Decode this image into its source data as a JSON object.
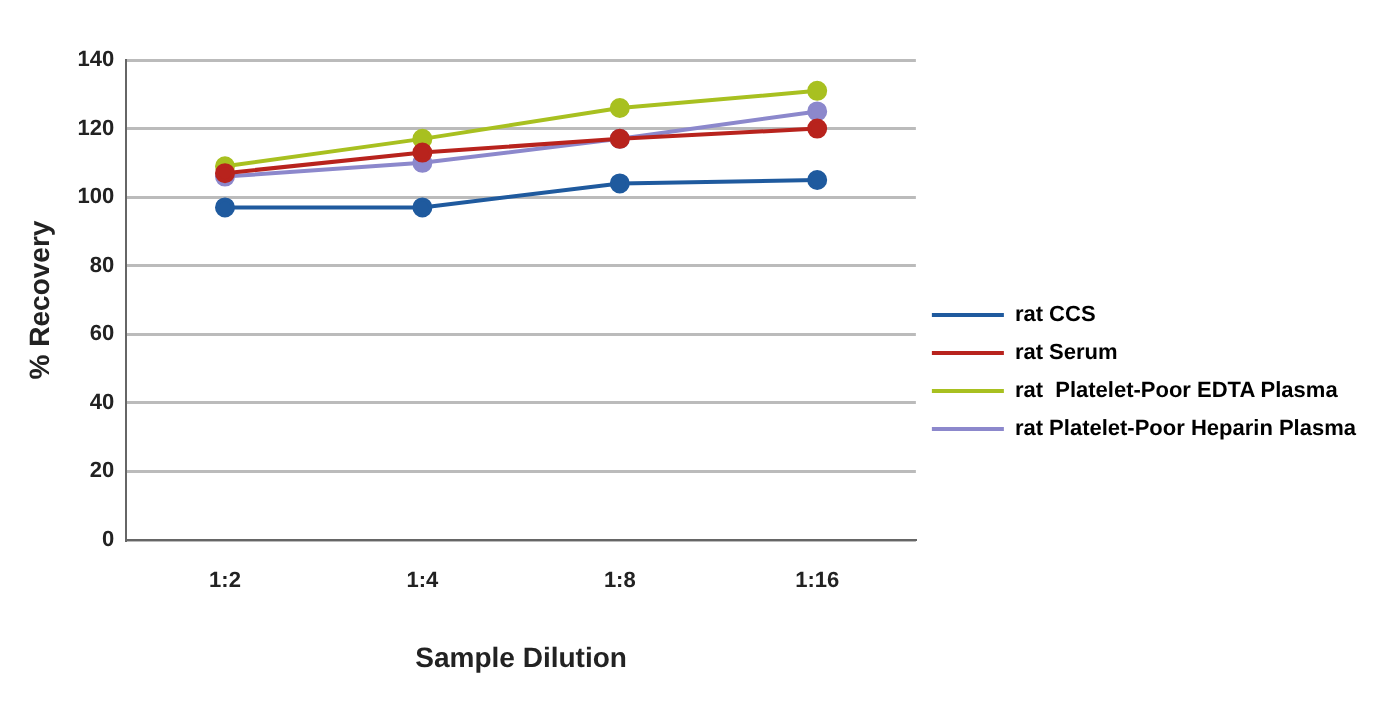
{
  "chart_data": {
    "type": "line",
    "xlabel": "Sample Dilution",
    "ylabel": "% Recovery",
    "categories": [
      "1:2",
      "1:4",
      "1:8",
      "1:16"
    ],
    "series": [
      {
        "name": "rat CCS",
        "color": "#1f5a9e",
        "values": [
          97,
          97,
          104,
          105
        ]
      },
      {
        "name": "rat Serum",
        "color": "#b8231d",
        "values": [
          107,
          113,
          117,
          120
        ]
      },
      {
        "name": "rat  Platelet-Poor EDTA Plasma",
        "color": "#a8c020",
        "values": [
          109,
          117,
          126,
          131
        ]
      },
      {
        "name": "rat Platelet-Poor Heparin Plasma",
        "color": "#8c88cc",
        "values": [
          106,
          110,
          117,
          125
        ]
      }
    ],
    "ylim": [
      0,
      140
    ],
    "yticks": [
      0,
      20,
      40,
      60,
      80,
      100,
      120,
      140
    ],
    "grid": "y",
    "legend": "right",
    "marker": "circle",
    "line_style": "solid"
  }
}
